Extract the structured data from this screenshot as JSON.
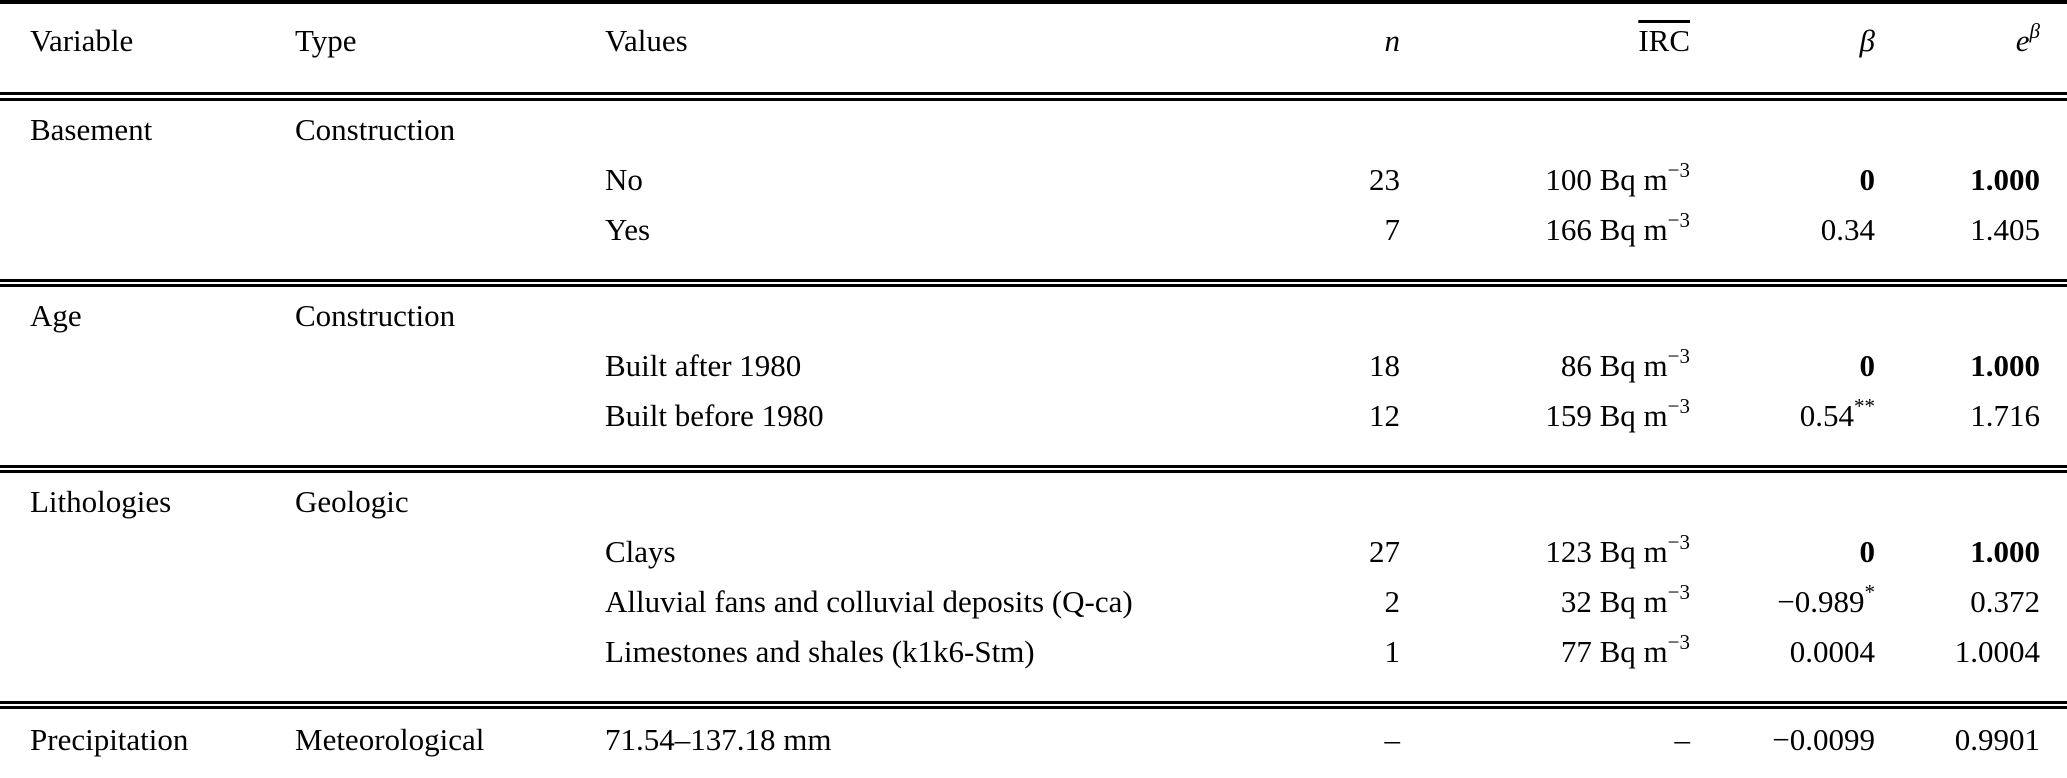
{
  "table": {
    "header": {
      "variable": "Variable",
      "type": "Type",
      "values": "Values",
      "n": "n",
      "irc": "IRC",
      "beta": "β",
      "e": "e",
      "e_sup": "β"
    },
    "sections": [
      {
        "rows": [
          {
            "variable": "Basement",
            "type": "Construction",
            "values": "",
            "n": "",
            "irc": "",
            "beta": "",
            "ebeta": ""
          },
          {
            "variable": "",
            "type": "",
            "values": "No",
            "n": "23",
            "irc": "100 Bq m",
            "irc_sup": "−3",
            "beta": "0",
            "ebeta": "1.000",
            "bold": true
          },
          {
            "variable": "",
            "type": "",
            "values": "Yes",
            "n": "7",
            "irc": "166 Bq m",
            "irc_sup": "−3",
            "beta": "0.34",
            "ebeta": "1.405"
          }
        ]
      },
      {
        "rows": [
          {
            "variable": "Age",
            "type": "Construction",
            "values": "",
            "n": "",
            "irc": "",
            "beta": "",
            "ebeta": ""
          },
          {
            "variable": "",
            "type": "",
            "values": "Built after 1980",
            "n": "18",
            "irc": "86 Bq m",
            "irc_sup": "−3",
            "beta": "0",
            "ebeta": "1.000",
            "bold": true
          },
          {
            "variable": "",
            "type": "",
            "values": "Built before 1980",
            "n": "12",
            "irc": "159 Bq m",
            "irc_sup": "−3",
            "beta": "0.54",
            "beta_sup": "**",
            "ebeta": "1.716"
          }
        ]
      },
      {
        "rows": [
          {
            "variable": "Lithologies",
            "type": "Geologic",
            "values": "",
            "n": "",
            "irc": "",
            "beta": "",
            "ebeta": ""
          },
          {
            "variable": "",
            "type": "",
            "values": "Clays",
            "n": "27",
            "irc": "123 Bq m",
            "irc_sup": "−3",
            "beta": "0",
            "ebeta": "1.000",
            "bold": true
          },
          {
            "variable": "",
            "type": "",
            "values": "Alluvial fans and colluvial deposits (Q-ca)",
            "n": "2",
            "irc": "32 Bq m",
            "irc_sup": "−3",
            "beta": "−0.989",
            "beta_sup": "*",
            "ebeta": "0.372"
          },
          {
            "variable": "",
            "type": "",
            "values": "Limestones and shales (k1k6-Stm)",
            "n": "1",
            "irc": "77 Bq m",
            "irc_sup": "−3",
            "beta": "0.0004",
            "ebeta": "1.0004"
          }
        ]
      },
      {
        "rows": [
          {
            "variable": "Precipitation",
            "type": "Meteorological",
            "values": "71.54–137.18 mm",
            "n": "–",
            "irc": "–",
            "beta": "−0.0099",
            "ebeta": "0.9901"
          }
        ]
      }
    ]
  }
}
